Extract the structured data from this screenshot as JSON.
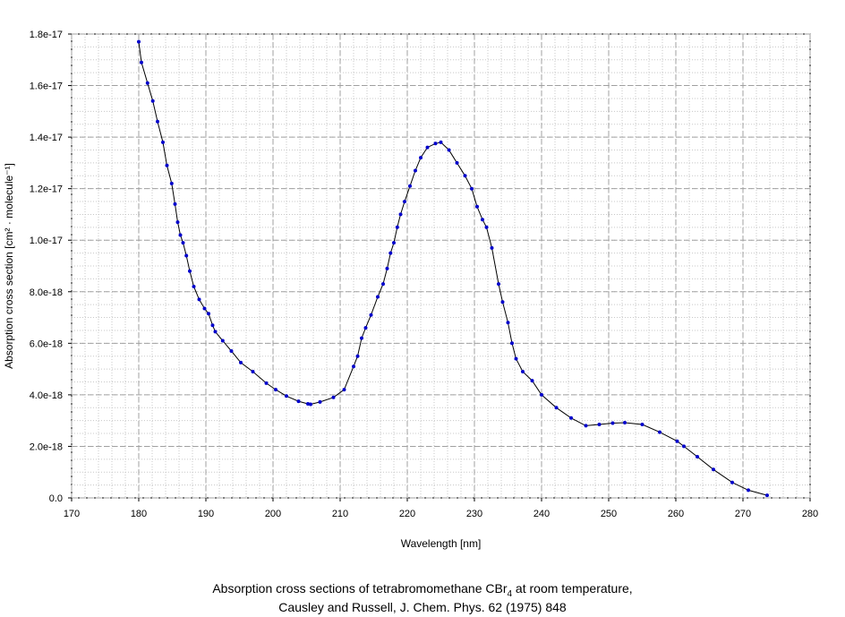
{
  "chart_data": {
    "type": "line",
    "xlabel": "Wavelength [nm]",
    "ylabel": "Absorption cross section [cm² · molecule⁻¹]",
    "xlim": [
      170,
      280
    ],
    "ylim": [
      0,
      1.8e-17
    ],
    "xticks": [
      170,
      180,
      190,
      200,
      210,
      220,
      230,
      240,
      250,
      260,
      270,
      280
    ],
    "xtick_labels": [
      "170",
      "180",
      "190",
      "200",
      "210",
      "220",
      "230",
      "240",
      "250",
      "260",
      "270",
      "280"
    ],
    "yticks": [
      0,
      2e-18,
      4e-18,
      6e-18,
      8e-18,
      1e-17,
      1.2e-17,
      1.4e-17,
      1.6e-17,
      1.8e-17
    ],
    "ytick_labels": [
      "0.0",
      "2.0e-18",
      "4.0e-18",
      "6.0e-18",
      "8.0e-18",
      "1.0e-17",
      "1.2e-17",
      "1.4e-17",
      "1.6e-17",
      "1.8e-17"
    ],
    "grid": true,
    "line_color": "#000000",
    "marker_color": "#0000cc",
    "series": [
      {
        "x": [
          180.0,
          180.4,
          181.3,
          182.1,
          182.8,
          183.6,
          184.2,
          184.9,
          185.4,
          185.8,
          186.2,
          186.6,
          187.1,
          187.6,
          188.2,
          189.0,
          189.8,
          190.4,
          191.0,
          191.4,
          192.5,
          193.8,
          195.2,
          197.0,
          199.0,
          200.4,
          202.0,
          203.8,
          205.2,
          205.6,
          207.0,
          209.0,
          210.6,
          212.0,
          212.6,
          213.2,
          213.8,
          214.6,
          215.6,
          216.4,
          217.0,
          217.5,
          218.0,
          218.5,
          219.0,
          219.6,
          220.4,
          221.2,
          222.0,
          223.0,
          224.2,
          225.0,
          226.2,
          227.4,
          228.6,
          229.6,
          230.4,
          231.2,
          231.8,
          232.6,
          233.6,
          234.2,
          235.0,
          235.6,
          236.2,
          237.2,
          238.6,
          240.0,
          242.2,
          244.4,
          246.6,
          248.6,
          250.6,
          252.4,
          255.0,
          257.6,
          260.2,
          261.2,
          263.2,
          265.6,
          268.4,
          270.8,
          273.6
        ],
        "y": [
          1.77e-17,
          1.69e-17,
          1.61e-17,
          1.54e-17,
          1.46e-17,
          1.38e-17,
          1.29e-17,
          1.22e-17,
          1.14e-17,
          1.07e-17,
          1.02e-17,
          9.9e-18,
          9.4e-18,
          8.8e-18,
          8.2e-18,
          7.7e-18,
          7.35e-18,
          7.15e-18,
          6.7e-18,
          6.45e-18,
          6.1e-18,
          5.7e-18,
          5.25e-18,
          4.9e-18,
          4.45e-18,
          4.2e-18,
          3.95e-18,
          3.75e-18,
          3.65e-18,
          3.63e-18,
          3.72e-18,
          3.9e-18,
          4.2e-18,
          5.1e-18,
          5.5e-18,
          6.2e-18,
          6.6e-18,
          7.1e-18,
          7.8e-18,
          8.3e-18,
          8.9e-18,
          9.5e-18,
          9.9e-18,
          1.05e-17,
          1.1e-17,
          1.15e-17,
          1.21e-17,
          1.27e-17,
          1.32e-17,
          1.36e-17,
          1.375e-17,
          1.38e-17,
          1.35e-17,
          1.3e-17,
          1.25e-17,
          1.2e-17,
          1.13e-17,
          1.08e-17,
          1.05e-17,
          9.7e-18,
          8.3e-18,
          7.6e-18,
          6.8e-18,
          6e-18,
          5.4e-18,
          4.9e-18,
          4.55e-18,
          4e-18,
          3.5e-18,
          3.1e-18,
          2.8e-18,
          2.85e-18,
          2.9e-18,
          2.92e-18,
          2.85e-18,
          2.55e-18,
          2.2e-18,
          2e-18,
          1.6e-18,
          1.1e-18,
          6e-19,
          3e-19,
          1e-19
        ]
      }
    ]
  },
  "caption": {
    "line1_pre": "Absorption cross sections of tetrabromomethane CBr",
    "line1_sub": "4",
    "line1_post": " at room temperature,",
    "line2": "Causley and Russell, J. Chem. Phys. 62 (1975) 848"
  }
}
